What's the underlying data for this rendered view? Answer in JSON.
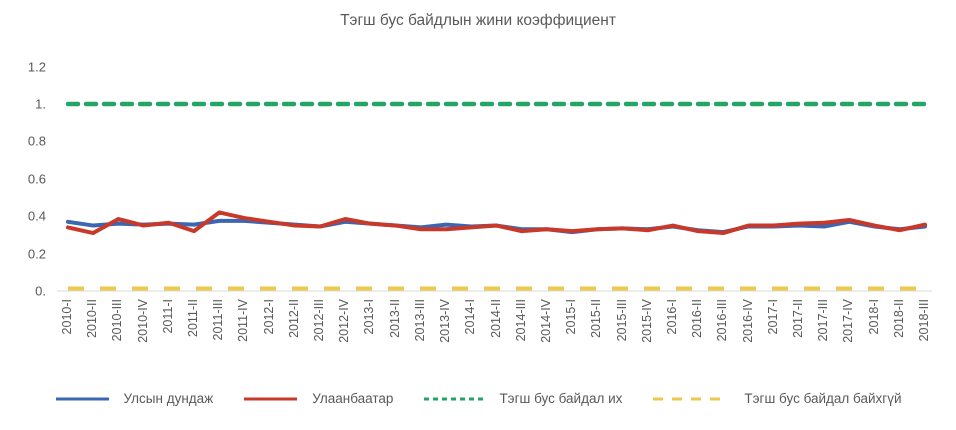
{
  "chart_data": {
    "type": "line",
    "title": "Тэгш бус байдлын жини коэффициент",
    "xlabel": "",
    "ylabel": "",
    "ylim": [
      0,
      1.2
    ],
    "grid": false,
    "legend_position": "bottom",
    "text_color": "#595959",
    "axis_color": "#D9D9D9",
    "yticks": [
      {
        "value": 0.0,
        "label": "0."
      },
      {
        "value": 0.2,
        "label": "0.2"
      },
      {
        "value": 0.4,
        "label": "0.4"
      },
      {
        "value": 0.6,
        "label": "0.6"
      },
      {
        "value": 0.8,
        "label": "0.8"
      },
      {
        "value": 1.0,
        "label": "1."
      },
      {
        "value": 1.2,
        "label": "1.2"
      }
    ],
    "categories": [
      "2010-I",
      "2010-II",
      "2010-III",
      "2010-IV",
      "2011-I",
      "2011-II",
      "2011-III",
      "2011-IV",
      "2012-I",
      "2012-II",
      "2012-III",
      "2012-IV",
      "2013-I",
      "2013-II",
      "2013-III",
      "2013-IV",
      "2014-I",
      "2014-II",
      "2014-III",
      "2014-IV",
      "2015-I",
      "2015-II",
      "2015-III",
      "2015-IV",
      "2016-I",
      "2016-II",
      "2016-III",
      "2016-IV",
      "2017-I",
      "2017-II",
      "2017-III",
      "2017-IV",
      "2018-I",
      "2018-II",
      "2018-III"
    ],
    "series": [
      {
        "key": "national-average",
        "name": "Улсын дундаж",
        "color": "#3A66B4",
        "dash": "solid",
        "values": [
          0.37,
          0.35,
          0.36,
          0.355,
          0.36,
          0.355,
          0.375,
          0.375,
          0.365,
          0.355,
          0.345,
          0.37,
          0.36,
          0.35,
          0.34,
          0.355,
          0.345,
          0.35,
          0.33,
          0.33,
          0.315,
          0.33,
          0.335,
          0.33,
          0.345,
          0.325,
          0.315,
          0.345,
          0.345,
          0.35,
          0.345,
          0.37,
          0.345,
          0.33,
          0.345
        ]
      },
      {
        "key": "ulaanbaatar",
        "name": "Улаанбаатар",
        "color": "#C9392A",
        "dash": "solid",
        "values": [
          0.34,
          0.31,
          0.385,
          0.35,
          0.365,
          0.32,
          0.42,
          0.39,
          0.37,
          0.35,
          0.345,
          0.385,
          0.36,
          0.35,
          0.33,
          0.33,
          0.34,
          0.35,
          0.32,
          0.33,
          0.32,
          0.33,
          0.335,
          0.325,
          0.35,
          0.32,
          0.31,
          0.35,
          0.35,
          0.36,
          0.365,
          0.38,
          0.35,
          0.325,
          0.355
        ]
      },
      {
        "key": "high-inequality",
        "name": "Тэгш бус байдал их",
        "color": "#23A566",
        "dash": "dashed",
        "values": [
          1,
          1,
          1,
          1,
          1,
          1,
          1,
          1,
          1,
          1,
          1,
          1,
          1,
          1,
          1,
          1,
          1,
          1,
          1,
          1,
          1,
          1,
          1,
          1,
          1,
          1,
          1,
          1,
          1,
          1,
          1,
          1,
          1,
          1,
          1
        ]
      },
      {
        "key": "no-inequality",
        "name": "Тэгш бус байдал байхгүй",
        "color": "#EDC84B",
        "dash": "long-dash",
        "values": [
          0,
          0,
          0,
          0,
          0,
          0,
          0,
          0,
          0,
          0,
          0,
          0,
          0,
          0,
          0,
          0,
          0,
          0,
          0,
          0,
          0,
          0,
          0,
          0,
          0,
          0,
          0,
          0,
          0,
          0,
          0,
          0,
          0,
          0,
          0
        ]
      }
    ]
  }
}
